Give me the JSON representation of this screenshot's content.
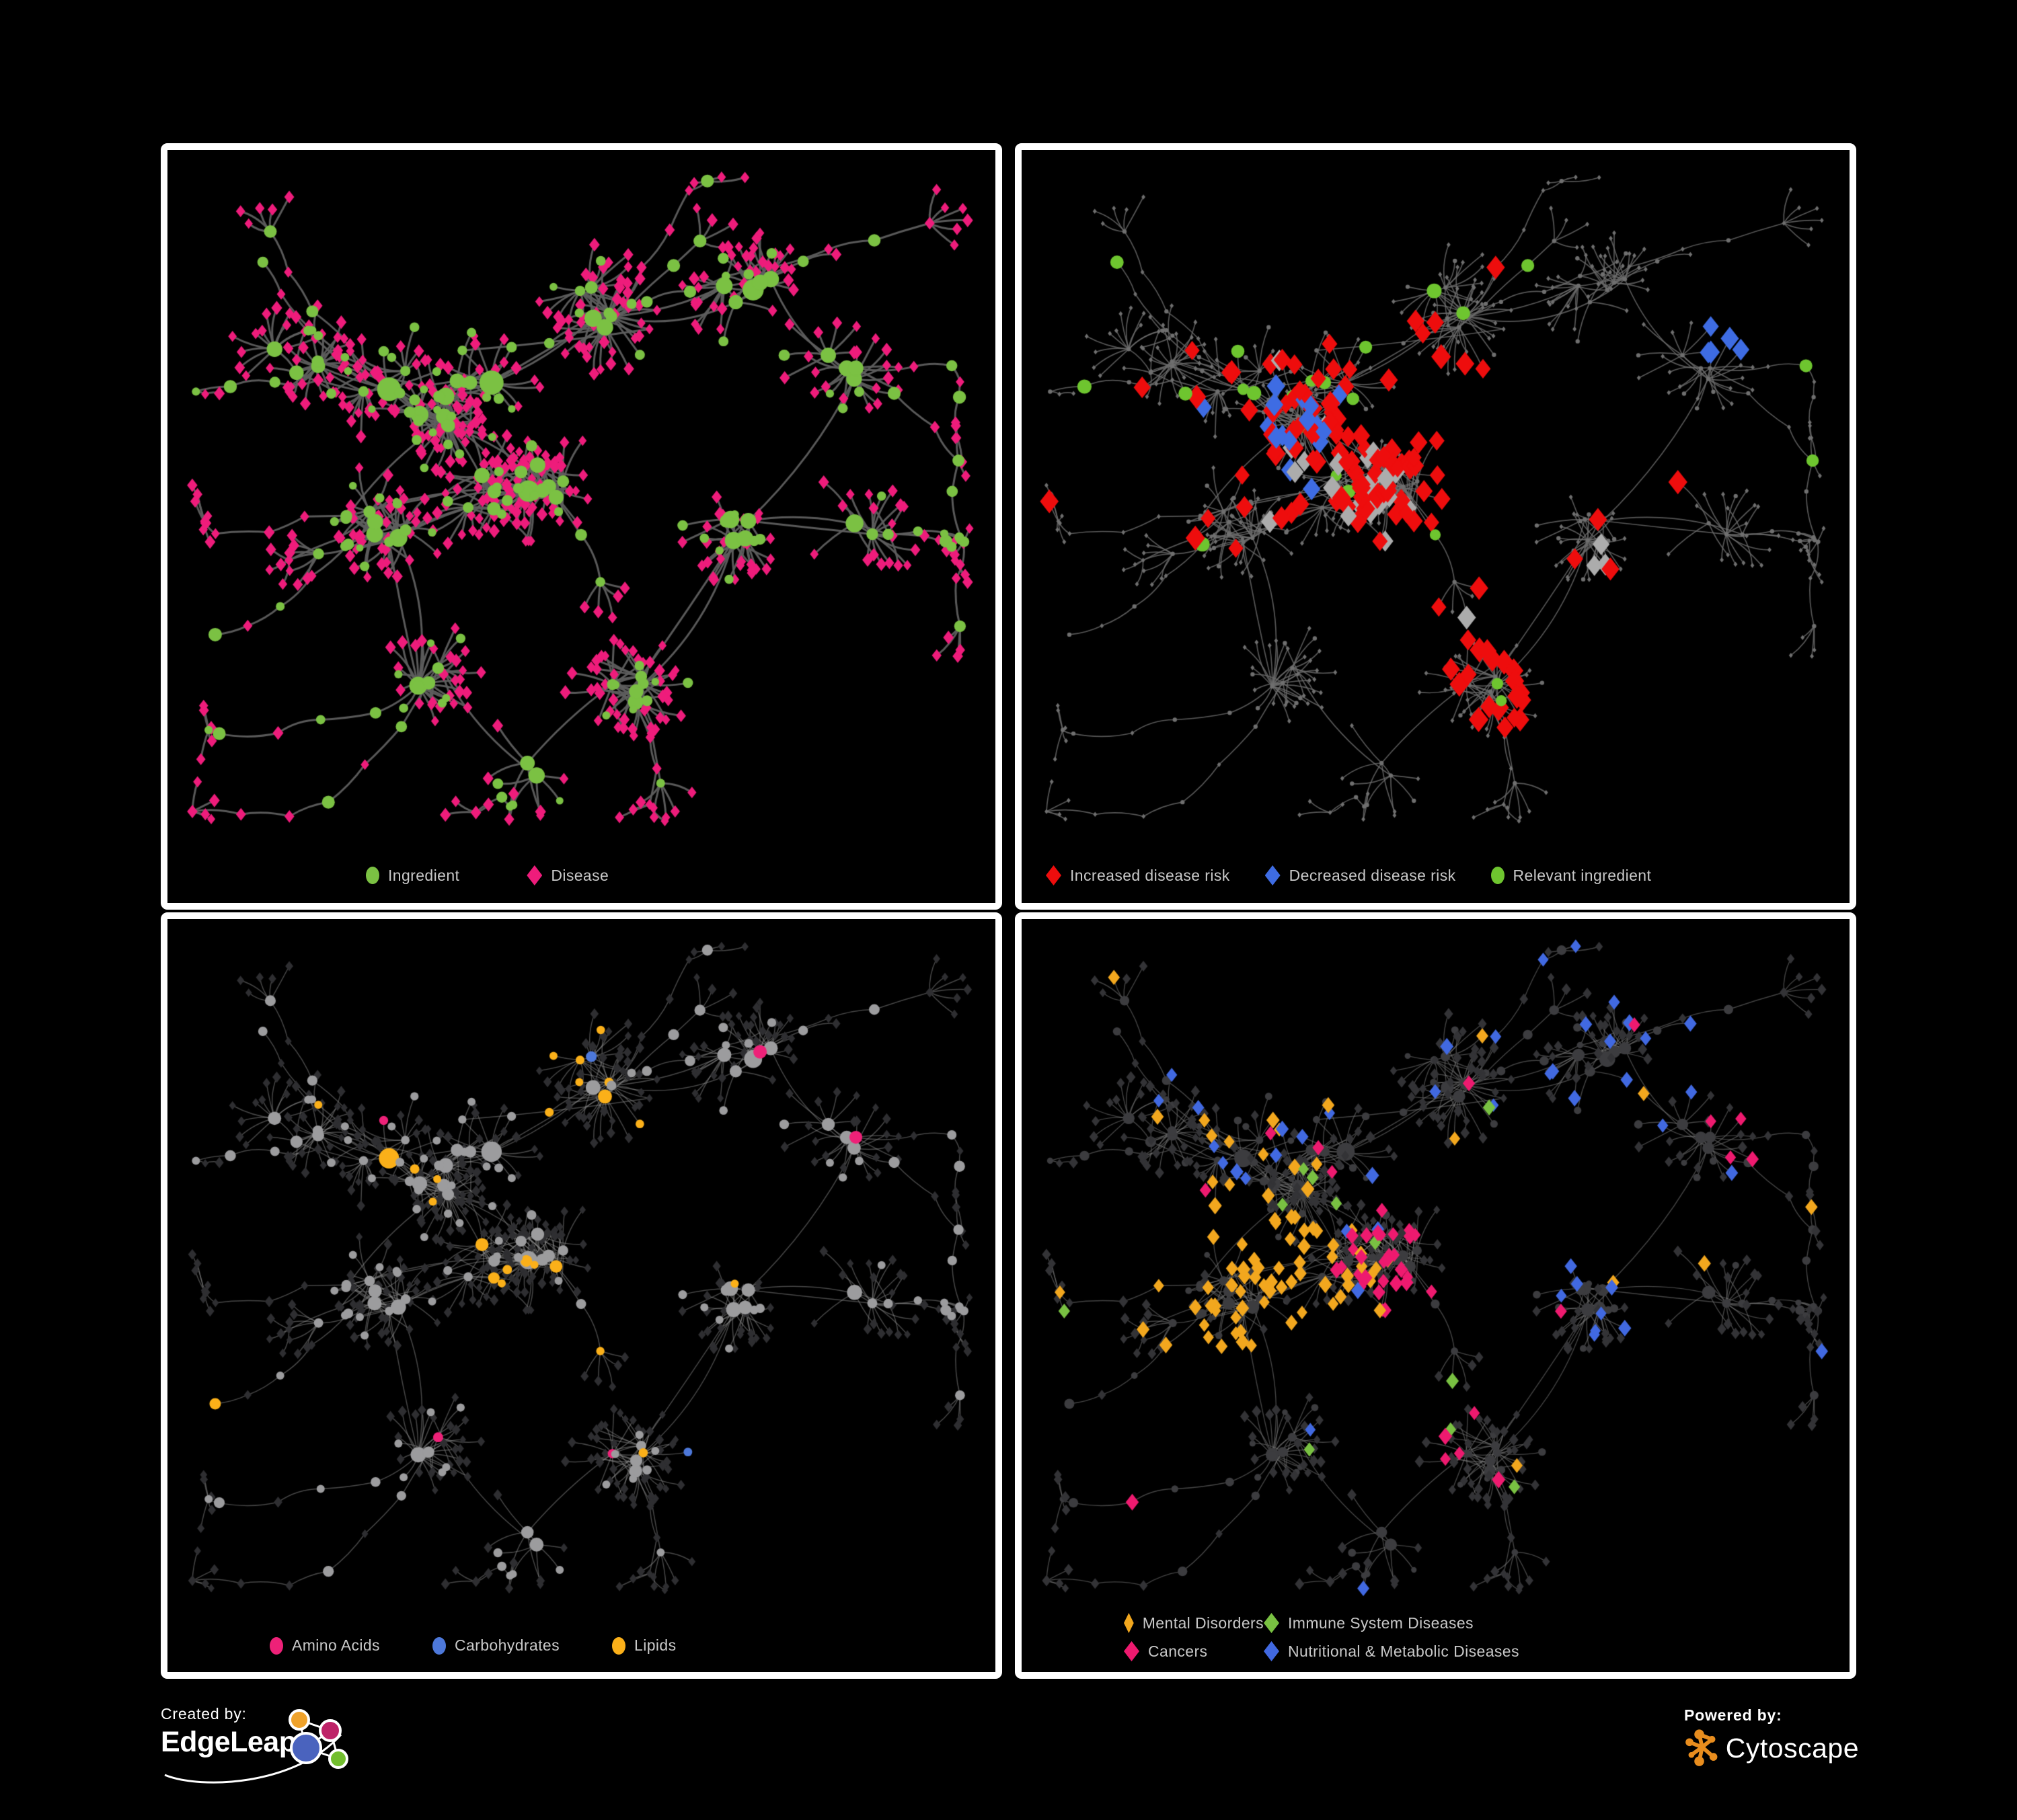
{
  "style": {
    "background": "#000000",
    "panel_border": "#ffffff",
    "legend_text": "#c8c8c8"
  },
  "panels": [
    {
      "name": "ingredient-disease-network",
      "legend": [
        {
          "label": "Ingredient",
          "shape": "circle",
          "color": "#7BC143"
        },
        {
          "label": "Disease",
          "shape": "diamond",
          "color": "#EE1C7B"
        }
      ],
      "net": {
        "edge": "#5E5E5E",
        "edge_width": 3.0,
        "edge_alpha": 0.95,
        "circle": "#7BC143",
        "diamond": "#EE1C7B"
      }
    },
    {
      "name": "disease-risk-network",
      "legend": [
        {
          "label": "Increased disease risk",
          "shape": "diamond",
          "color": "#EE0D0D"
        },
        {
          "label": "Decreased disease risk",
          "shape": "diamond",
          "color": "#3E6CE3"
        },
        {
          "label": "Relevant ingredient",
          "shape": "circle",
          "color": "#6EC52F"
        }
      ],
      "net": {
        "edge": "#6D6D6D",
        "edge_width": 1.7,
        "edge_alpha": 0.8,
        "base_node": "#6F6F6F",
        "increased": "#EE0D0D",
        "decreased": "#3E6CE3",
        "neutral": "#ACACAC",
        "ingredient": "#6EC52F"
      }
    },
    {
      "name": "nutrient-class-network",
      "legend": [
        {
          "label": "Amino Acids",
          "shape": "circle",
          "color": "#EE2178"
        },
        {
          "label": "Carbohydrates",
          "shape": "circle",
          "color": "#4D78DA"
        },
        {
          "label": "Lipids",
          "shape": "circle",
          "color": "#FBB019"
        }
      ],
      "net": {
        "edge": "#8E8E8E",
        "edge_width": 1.5,
        "edge_alpha": 0.5,
        "circle": "#9C9C9E",
        "diamond": "#2E2E31",
        "amino": "#EE2178",
        "carb": "#4D78DA",
        "lipid": "#FBB019"
      }
    },
    {
      "name": "disease-class-network",
      "legend": [
        {
          "label": "Mental Disorders",
          "shape": "diamond",
          "color": "#F2A71E"
        },
        {
          "label": "Immune System Diseases",
          "shape": "diamond",
          "color": "#79C142"
        },
        {
          "label": "Cancers",
          "shape": "diamond",
          "color": "#EE1A6F"
        },
        {
          "label": "Nutritional & Metabolic Diseases",
          "shape": "diamond",
          "color": "#4169E1"
        }
      ],
      "net": {
        "edge": "#7C7C7C",
        "edge_width": 1.4,
        "edge_alpha": 0.55,
        "circle": "#3C3C3F",
        "diamond": "#333336",
        "mental": "#F2A71E",
        "immune": "#79C142",
        "cancer": "#EE1A6F",
        "nutritional": "#4169E1"
      }
    }
  ],
  "footer": {
    "created_by_label": "Created by:",
    "created_by_brand": "EdgeLeap",
    "powered_by_label": "Powered by:",
    "powered_by_brand": "Cytoscape",
    "edgeleap_colors": {
      "blue": "#4A63BE",
      "orange": "#EFA22B",
      "magenta": "#BE2368",
      "green": "#72BE2E"
    },
    "cytoscape_orange": "#E88D1E"
  }
}
